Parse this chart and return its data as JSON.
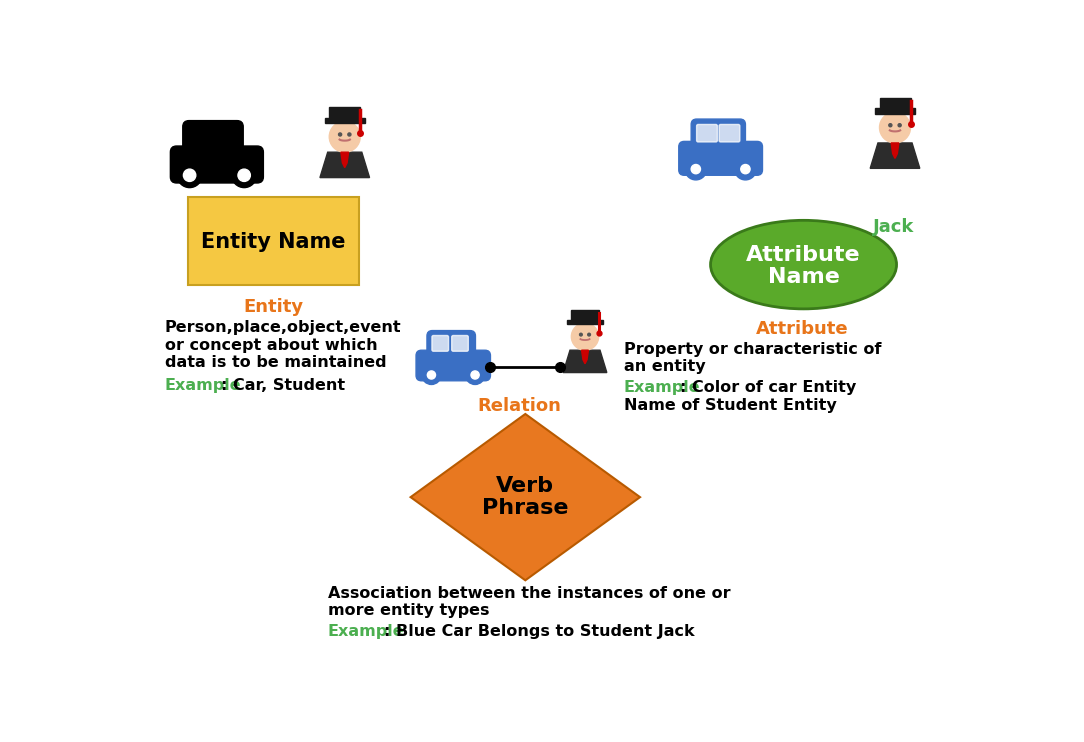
{
  "bg_color": "#ffffff",
  "orange_color": "#E8751A",
  "green_color": "#4CAF50",
  "black_color": "#1a1a1a",
  "entity_box_color": "#F5C842",
  "entity_box_edge": "#C8A020",
  "ellipse_color": "#5aaa2a",
  "diamond_color": "#E87820",
  "blue_car_color": "#3A6FC4",
  "entity_label": "Entity Name",
  "attr_label_line1": "Attribute",
  "attr_label_line2": "Name",
  "entity_title": "Entity",
  "attr_title": "Attribute",
  "relation_title": "Relation",
  "jack_label": "Jack",
  "entity_desc_line1": "Person,place,object,event",
  "entity_desc_line2": "or concept about which",
  "entity_desc_line3": "data is to be maintained",
  "entity_example": "Example",
  "entity_example_text": ": Car, Student",
  "attr_desc_line1": "Property or characteristic of",
  "attr_desc_line2": "an entity",
  "attr_example": "Example",
  "attr_example_text1": ": Color of car Entity",
  "attr_desc_line3": "Name of Student Entity",
  "rel_desc_line1": "Association between the instances of one or",
  "rel_desc_line2": "more entity types",
  "rel_example": "Example",
  "rel_example_text": ": Blue Car Belongs to Student Jack",
  "verb_line1": "Verb",
  "verb_line2": "Phrase",
  "skin_color": "#F5CBA7",
  "gown_color": "#2c2c2c",
  "cap_color": "#1a1a1a"
}
